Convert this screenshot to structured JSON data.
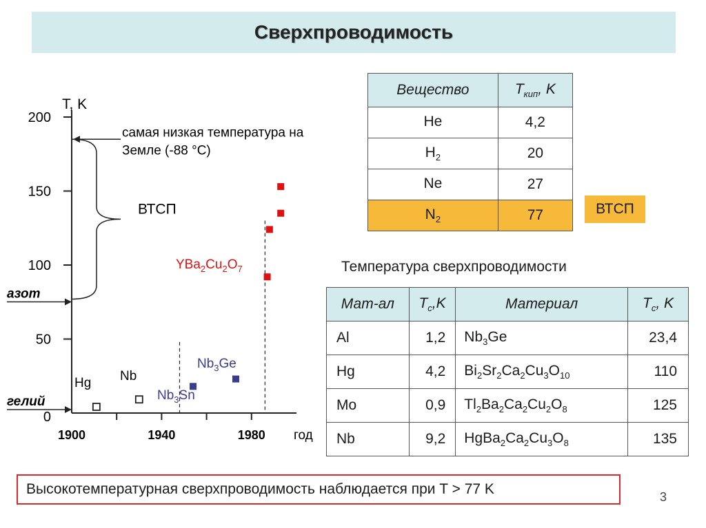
{
  "title": "Сверхпроводимость",
  "boil_table": {
    "headers": [
      "Вещество",
      "T",
      "кип",
      ", K"
    ],
    "rows": [
      {
        "substance": "He",
        "sub": "",
        "value": "4,2"
      },
      {
        "substance": "H",
        "sub": "2",
        "value": "20"
      },
      {
        "substance": "Ne",
        "sub": "",
        "value": "27"
      },
      {
        "substance": "N",
        "sub": "2",
        "value": "77",
        "highlight": true
      }
    ]
  },
  "vtsp_badge": "ВТСП",
  "sc_title": "Температура сверхпроводимости",
  "sc_table": {
    "headers": [
      "Мат-ал",
      "T",
      "c",
      ",K",
      "Материал",
      "T",
      "c",
      ", K"
    ],
    "rows": [
      {
        "m1": "Al",
        "t1": "1,2",
        "m2": [
          [
            "Nb",
            ""
          ],
          [
            "",
            "3"
          ],
          [
            "Ge",
            ""
          ]
        ],
        "t2": "23,4"
      },
      {
        "m1": "Hg",
        "t1": "4,2",
        "m2": [
          [
            "Bi",
            ""
          ],
          [
            "",
            "2"
          ],
          [
            "Sr",
            ""
          ],
          [
            "",
            "2"
          ],
          [
            "Ca",
            ""
          ],
          [
            "",
            "2"
          ],
          [
            "Cu",
            ""
          ],
          [
            "",
            "3"
          ],
          [
            "O",
            ""
          ],
          [
            "",
            "10"
          ]
        ],
        "t2": "110"
      },
      {
        "m1": "Mo",
        "t1": "0,9",
        "m2": [
          [
            "Tl",
            ""
          ],
          [
            "",
            "2"
          ],
          [
            "Ba",
            ""
          ],
          [
            "",
            "2"
          ],
          [
            "Ca",
            ""
          ],
          [
            "",
            "2"
          ],
          [
            "Cu",
            ""
          ],
          [
            "",
            "2"
          ],
          [
            "O",
            ""
          ],
          [
            "",
            "8"
          ]
        ],
        "t2": "125"
      },
      {
        "m1": "Nb",
        "t1": "9,2",
        "m2": [
          [
            "HgBa",
            ""
          ],
          [
            "",
            "2"
          ],
          [
            "Ca",
            ""
          ],
          [
            "",
            "2"
          ],
          [
            "Cu",
            ""
          ],
          [
            "",
            "3"
          ],
          [
            "O",
            ""
          ],
          [
            "",
            "8"
          ]
        ],
        "t2": "135"
      }
    ]
  },
  "bottom_text": "Высокотемпературная сверхпроводимость наблюдается при T > 77 K",
  "page_number": "3",
  "chart_data": {
    "type": "scatter",
    "ylabel": "T, K",
    "xlabel": "год",
    "xlim": [
      1900,
      2000
    ],
    "ylim": [
      0,
      200
    ],
    "yticks": [
      0,
      50,
      100,
      150,
      200
    ],
    "xtick_labels": [
      "1900",
      "1940",
      "1980"
    ],
    "xticks": [
      1900,
      1940,
      1980
    ],
    "annotations": {
      "lowest_temp_line1": "самая низкая температура на",
      "lowest_temp_line2": "Земле (-88 °С)",
      "lowest_temp_value": 185,
      "brace_label": "ВТСП",
      "nitrogen_label": "азот",
      "nitrogen_value": 77,
      "helium_label": "гелий",
      "helium_value": 4.2
    },
    "series": [
      {
        "name": "Hg",
        "marker": "open-square",
        "color": "#222222",
        "points": [
          [
            1911,
            4.2
          ]
        ]
      },
      {
        "name": "Nb",
        "marker": "open-square",
        "color": "#222222",
        "points": [
          [
            1930,
            9.2
          ]
        ]
      },
      {
        "name": "Nb3Sn",
        "marker": "filled-square",
        "color": "#3b3b8f",
        "points": [
          [
            1954,
            18
          ]
        ]
      },
      {
        "name": "Nb3Ge",
        "marker": "filled-square",
        "color": "#3b3b8f",
        "points": [
          [
            1973,
            23
          ]
        ]
      },
      {
        "name": "YBa2Cu2O7",
        "marker": "filled-square",
        "color": "#dd1111",
        "points": [
          [
            1987,
            92
          ]
        ]
      },
      {
        "name": "",
        "marker": "filled-square",
        "color": "#dd1111",
        "points": [
          [
            1988,
            124
          ],
          [
            1993,
            135
          ],
          [
            1993,
            153
          ]
        ]
      }
    ],
    "dashed_lines_x": [
      1948,
      1986
    ]
  }
}
